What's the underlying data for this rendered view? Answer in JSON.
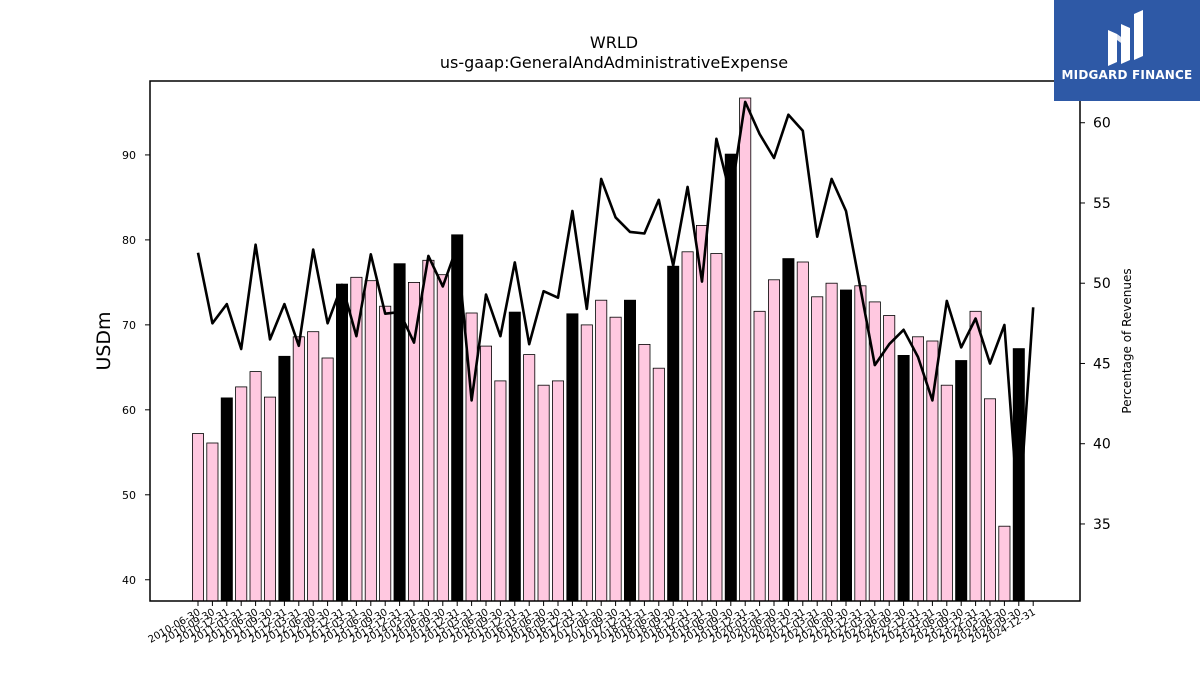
{
  "brand": {
    "name": "MIDGARD FINANCE",
    "bg_color": "#2e59a6"
  },
  "chart_data": {
    "type": "bar",
    "title": "WRLD",
    "subtitle": "us-gaap:GeneralAndAdministrativeExpense",
    "ylabel": "USDm",
    "y2label": "Percentage of Revenues",
    "ylim": [
      37.5,
      98.7
    ],
    "y2lim": [
      30.2,
      62.6
    ],
    "yticks": [
      40,
      50,
      60,
      70,
      80,
      90
    ],
    "y2ticks": [
      35,
      40,
      45,
      50,
      55,
      60
    ],
    "colors": {
      "quarter_bar": "#ffc8e0",
      "annual_bar": "#000000",
      "line": "#000000"
    },
    "categories": [
      "2010-06-30",
      "2010-09-30",
      "2010-12-31",
      "2011-03-31",
      "2011-06-30",
      "2011-09-30",
      "2011-12-31",
      "2012-03-31",
      "2012-06-30",
      "2012-09-30",
      "2012-12-31",
      "2013-03-31",
      "2013-06-30",
      "2013-09-30",
      "2013-12-31",
      "2014-03-31",
      "2014-06-30",
      "2014-09-30",
      "2014-12-31",
      "2015-03-31",
      "2015-06-30",
      "2015-09-30",
      "2015-12-31",
      "2016-03-31",
      "2016-06-30",
      "2016-09-30",
      "2016-12-31",
      "2017-03-31",
      "2017-06-30",
      "2017-09-30",
      "2017-12-31",
      "2018-03-31",
      "2018-06-30",
      "2018-09-30",
      "2018-12-31",
      "2019-03-31",
      "2019-06-30",
      "2019-09-30",
      "2019-12-31",
      "2020-03-31",
      "2020-06-30",
      "2020-09-30",
      "2020-12-31",
      "2021-03-31",
      "2021-06-30",
      "2021-09-30",
      "2021-12-31",
      "2022-03-31",
      "2022-06-30",
      "2022-09-30",
      "2022-12-31",
      "2023-03-31",
      "2023-06-30",
      "2023-09-30",
      "2023-12-31",
      "2024-03-31",
      "2024-06-30",
      "2024-09-30",
      "2024-12-31"
    ],
    "series": [
      {
        "kind": "bar",
        "values": [
          57.2,
          56.1,
          61.4,
          62.7,
          64.5,
          61.5,
          66.3,
          68.6,
          69.2,
          66.1,
          74.8,
          75.6,
          75.2,
          72.2,
          77.2,
          75.0,
          77.6,
          75.9,
          80.6,
          71.4,
          67.5,
          63.4,
          71.5,
          66.5,
          62.9,
          63.4,
          71.3,
          70.0,
          72.9,
          70.9,
          72.9,
          67.7,
          64.9,
          76.9,
          78.6,
          81.7,
          78.4,
          90.1,
          96.7,
          71.6,
          75.3,
          77.8,
          77.4,
          73.3,
          74.9,
          74.1,
          74.6,
          72.7,
          71.1,
          66.4,
          68.6,
          68.1,
          62.9,
          65.8,
          71.6,
          61.3,
          46.3,
          67.2,
          null
        ],
        "annual": [
          false,
          false,
          true,
          false,
          false,
          false,
          true,
          false,
          false,
          false,
          true,
          false,
          false,
          false,
          true,
          false,
          false,
          false,
          true,
          false,
          false,
          false,
          true,
          false,
          false,
          false,
          true,
          false,
          false,
          false,
          true,
          false,
          false,
          true,
          false,
          false,
          false,
          true,
          false,
          false,
          false,
          true,
          false,
          false,
          false,
          true,
          false,
          false,
          false,
          true,
          false,
          false,
          false,
          true,
          false,
          false,
          false,
          true,
          false
        ]
      },
      {
        "kind": "line",
        "axis": "right",
        "values": [
          51.9,
          47.5,
          48.7,
          45.9,
          52.4,
          46.5,
          48.7,
          46.1,
          52.1,
          47.5,
          49.9,
          46.7,
          51.8,
          48.1,
          48.2,
          46.3,
          51.7,
          49.8,
          52.3,
          42.7,
          49.3,
          46.7,
          51.3,
          46.2,
          49.5,
          49.1,
          54.5,
          48.4,
          56.5,
          54.1,
          53.2,
          53.1,
          55.2,
          51.1,
          56.0,
          50.1,
          59.0,
          55.4,
          61.3,
          59.3,
          57.8,
          60.5,
          59.5,
          52.9,
          56.5,
          54.5,
          49.7,
          44.9,
          46.2,
          47.1,
          45.4,
          42.7,
          48.9,
          46.0,
          47.8,
          45.0,
          47.4,
          35.3,
          48.5
        ]
      }
    ]
  }
}
